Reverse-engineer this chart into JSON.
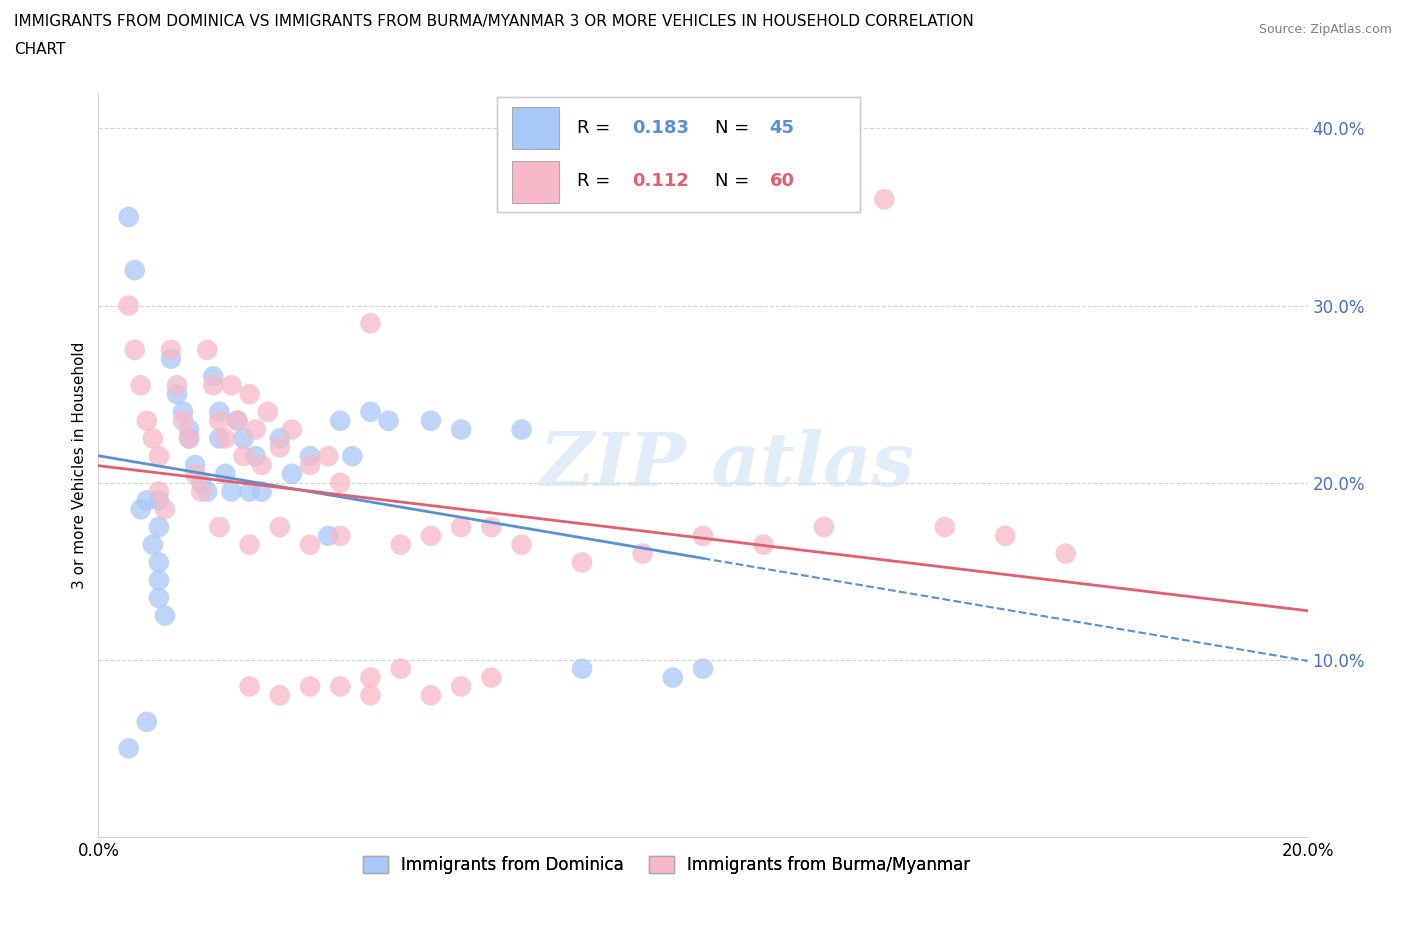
{
  "title_line1": "IMMIGRANTS FROM DOMINICA VS IMMIGRANTS FROM BURMA/MYANMAR 3 OR MORE VEHICLES IN HOUSEHOLD CORRELATION",
  "title_line2": "CHART",
  "source": "Source: ZipAtlas.com",
  "ylabel": "3 or more Vehicles in Household",
  "xlim": [
    0.0,
    0.2
  ],
  "ylim": [
    0.0,
    0.42
  ],
  "dominica_color": "#a8c8f8",
  "burma_color": "#f8b8c8",
  "dominica_R": 0.183,
  "dominica_N": 45,
  "burma_R": 0.112,
  "burma_N": 60,
  "dominica_line_color": "#5b8fd4",
  "burma_line_color": "#e06070",
  "dominica_label": "Immigrants from Dominica",
  "burma_label": "Immigrants from Burma/Myanmar",
  "ytick_color": "#4472c4",
  "dominica_x": [
    0.005,
    0.006,
    0.007,
    0.008,
    0.009,
    0.01,
    0.01,
    0.01,
    0.01,
    0.011,
    0.012,
    0.013,
    0.014,
    0.015,
    0.015,
    0.016,
    0.017,
    0.018,
    0.019,
    0.02,
    0.02,
    0.021,
    0.022,
    0.023,
    0.024,
    0.025,
    0.026,
    0.027,
    0.03,
    0.032,
    0.035,
    0.038,
    0.04,
    0.042,
    0.045,
    0.048,
    0.055,
    0.06,
    0.07,
    0.08,
    0.095,
    0.1,
    0.005,
    0.008,
    0.01
  ],
  "dominica_y": [
    0.35,
    0.32,
    0.185,
    0.19,
    0.165,
    0.175,
    0.155,
    0.145,
    0.135,
    0.125,
    0.27,
    0.25,
    0.24,
    0.23,
    0.225,
    0.21,
    0.2,
    0.195,
    0.26,
    0.24,
    0.225,
    0.205,
    0.195,
    0.235,
    0.225,
    0.195,
    0.215,
    0.195,
    0.225,
    0.205,
    0.215,
    0.17,
    0.235,
    0.215,
    0.24,
    0.235,
    0.235,
    0.23,
    0.23,
    0.095,
    0.09,
    0.095,
    0.05,
    0.065,
    0.19
  ],
  "burma_x": [
    0.005,
    0.006,
    0.007,
    0.008,
    0.009,
    0.01,
    0.01,
    0.011,
    0.012,
    0.013,
    0.014,
    0.015,
    0.016,
    0.017,
    0.018,
    0.019,
    0.02,
    0.021,
    0.022,
    0.023,
    0.024,
    0.025,
    0.026,
    0.027,
    0.028,
    0.03,
    0.032,
    0.035,
    0.038,
    0.04,
    0.045,
    0.05,
    0.055,
    0.06,
    0.065,
    0.07,
    0.08,
    0.09,
    0.1,
    0.11,
    0.12,
    0.13,
    0.14,
    0.15,
    0.16,
    0.02,
    0.025,
    0.03,
    0.035,
    0.04,
    0.045,
    0.05,
    0.055,
    0.06,
    0.065,
    0.025,
    0.03,
    0.035,
    0.04,
    0.045
  ],
  "burma_y": [
    0.3,
    0.275,
    0.255,
    0.235,
    0.225,
    0.215,
    0.195,
    0.185,
    0.275,
    0.255,
    0.235,
    0.225,
    0.205,
    0.195,
    0.275,
    0.255,
    0.235,
    0.225,
    0.255,
    0.235,
    0.215,
    0.25,
    0.23,
    0.21,
    0.24,
    0.22,
    0.23,
    0.21,
    0.215,
    0.2,
    0.29,
    0.165,
    0.17,
    0.175,
    0.175,
    0.165,
    0.155,
    0.16,
    0.17,
    0.165,
    0.175,
    0.36,
    0.175,
    0.17,
    0.16,
    0.175,
    0.165,
    0.175,
    0.165,
    0.085,
    0.09,
    0.095,
    0.08,
    0.085,
    0.09,
    0.085,
    0.08,
    0.085,
    0.17,
    0.08
  ]
}
